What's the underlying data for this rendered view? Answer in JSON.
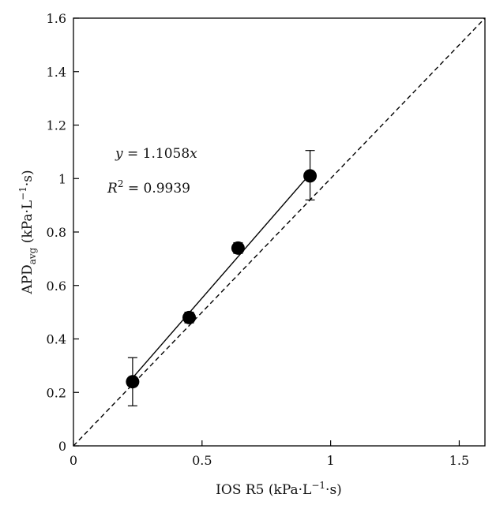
{
  "chart_data": {
    "type": "scatter",
    "title": "",
    "xlabel": "IOS R5 (kPa·L−1·s)",
    "ylabel": "APDavg (kPa·L−1·s)",
    "xlim": [
      0,
      1.6
    ],
    "ylim": [
      0,
      1.6
    ],
    "x_ticks": [
      0,
      0.5,
      1,
      1.5
    ],
    "y_ticks": [
      0,
      0.2,
      0.4,
      0.6,
      0.8,
      1,
      1.2,
      1.4,
      1.6
    ],
    "x_tick_labels": [
      "0",
      "0.5",
      "1",
      "1.5"
    ],
    "y_tick_labels": [
      "0",
      "0.2",
      "0.4",
      "0.6",
      "0.8",
      "1",
      "1.2",
      "1.4",
      "1.6"
    ],
    "grid": false,
    "series": [
      {
        "type": "scatter",
        "x": [
          0.23,
          0.45,
          0.64,
          0.92
        ],
        "y": [
          0.24,
          0.48,
          0.74,
          1.01
        ],
        "error_lower": [
          0.09,
          0.02,
          0.02,
          0.09
        ],
        "error_upper": [
          0.09,
          0.02,
          0.02,
          0.095
        ],
        "color": "#000000"
      }
    ],
    "fit_line": {
      "slope": 1.1058,
      "x_range": [
        0.23,
        0.92
      ],
      "style": "solid"
    },
    "reference_line": {
      "slope": 1,
      "x_range": [
        0,
        1.6
      ],
      "style": "dashed"
    },
    "annotations": {
      "equation_var": "y",
      "equation_rest": " = 1.1058",
      "equation_x": "x",
      "r2_label": "R",
      "r2_sup": "2",
      "r2_value": " = 0.9939"
    },
    "axis_label_parts": {
      "xlabel_pre": "IOS R5 (kPa·L",
      "xlabel_sup": "−1",
      "xlabel_post": "·s)",
      "ylabel_main": "APD",
      "ylabel_sub": "avg",
      "ylabel_mid": " (kPa·L",
      "ylabel_sup": "−1",
      "ylabel_post": "·s)"
    }
  }
}
